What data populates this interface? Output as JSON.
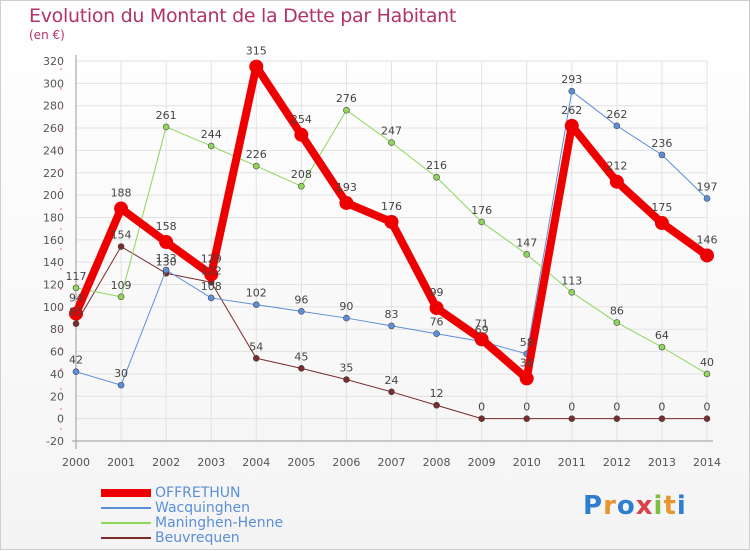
{
  "title": "Evolution du Montant de la Dette par Habitant",
  "subtitle": "(en €)",
  "logo": "Proxiti",
  "chart_data": {
    "type": "line",
    "title": "Evolution du Montant de la Dette par Habitant",
    "subtitle": "(en €)",
    "x": [
      2000,
      2001,
      2002,
      2003,
      2004,
      2005,
      2006,
      2007,
      2008,
      2009,
      2010,
      2011,
      2012,
      2013,
      2014
    ],
    "xlabel": "",
    "ylabel": "",
    "ylim": [
      -20,
      320
    ],
    "yticks": [
      -20,
      0,
      20,
      40,
      60,
      80,
      100,
      120,
      140,
      160,
      180,
      200,
      220,
      240,
      260,
      280,
      300,
      320
    ],
    "grid": true,
    "legend_position": "bottom-left",
    "series": [
      {
        "name": "Beuvrequen",
        "color": "#7a2b2b",
        "values": [
          85,
          154,
          130,
          122,
          54,
          45,
          35,
          24,
          12,
          0,
          0,
          0,
          0,
          0,
          0
        ]
      },
      {
        "name": "Wacquinghen",
        "color": "#5b8fd9",
        "values": [
          42,
          30,
          133,
          108,
          102,
          96,
          90,
          83,
          76,
          69,
          58,
          293,
          262,
          236,
          197
        ]
      },
      {
        "name": "Maninghen-Henne",
        "color": "#8ed65a",
        "values": [
          117,
          109,
          261,
          244,
          226,
          208,
          276,
          247,
          216,
          176,
          147,
          113,
          86,
          64,
          40
        ]
      },
      {
        "name": "OFFRETHUN",
        "color": "#ee0000",
        "values": [
          94,
          188,
          158,
          129,
          315,
          254,
          193,
          176,
          99,
          71,
          36,
          262,
          212,
          175,
          146
        ]
      }
    ]
  }
}
